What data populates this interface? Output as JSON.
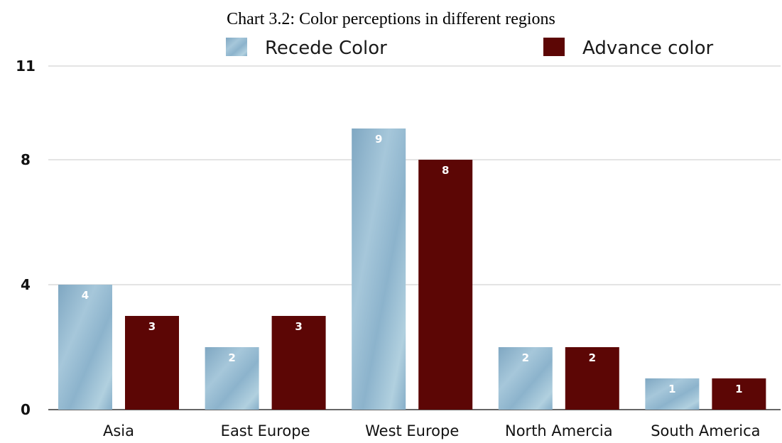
{
  "chart_data": {
    "type": "bar",
    "title": "Chart 3.2: Color perceptions in different regions",
    "xlabel": "",
    "ylabel": "",
    "categories": [
      "Asia",
      "East Europe",
      "West Europe",
      "North Amercia",
      "South America"
    ],
    "series": [
      {
        "name": "Recede Color",
        "values": [
          4,
          2,
          9,
          2,
          1
        ],
        "value_labels": [
          "4",
          "2",
          "9",
          "2",
          "1"
        ],
        "color": "#8fb5cf"
      },
      {
        "name": "Advance color",
        "values": [
          3,
          3,
          8,
          2,
          1
        ],
        "value_labels": [
          "3",
          "3",
          "8",
          "2",
          "1"
        ],
        "color": "#5c0605"
      }
    ],
    "yticks": [
      0,
      4,
      8,
      11
    ],
    "ytick_labels": [
      "0",
      "4",
      "8",
      "11"
    ],
    "ylim": [
      0,
      11
    ],
    "grid": true,
    "legend_position": "top"
  }
}
